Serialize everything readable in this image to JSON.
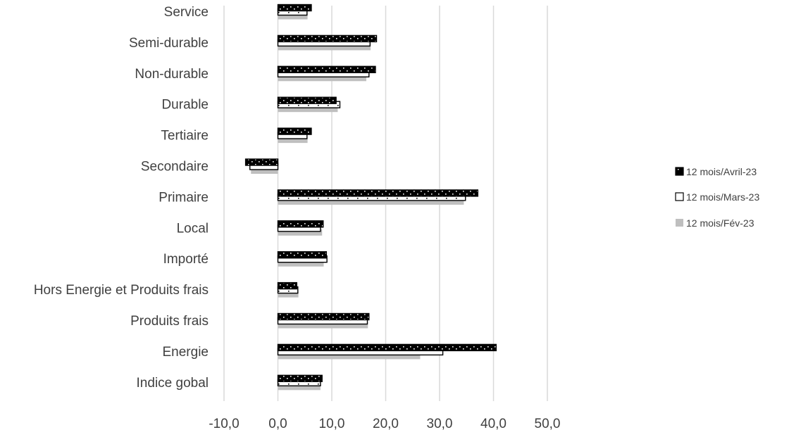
{
  "chart_data": {
    "type": "bar",
    "orientation": "horizontal",
    "categories": [
      "Service",
      "Semi-durable",
      "Non-durable",
      "Durable",
      "Tertiaire",
      "Secondaire",
      "Primaire",
      "Local",
      "Importé",
      "Hors Energie et Produits frais",
      "Produits frais",
      "Energie",
      "Indice gobal"
    ],
    "series": [
      {
        "name": "12 mois/Avril-23",
        "values": [
          6.2,
          18.3,
          18.1,
          10.8,
          6.2,
          -6.0,
          37.1,
          8.4,
          9.0,
          3.5,
          16.9,
          40.5,
          8.2
        ]
      },
      {
        "name": "12 mois/Mars-23",
        "values": [
          5.4,
          17.1,
          16.9,
          11.5,
          5.4,
          -5.2,
          34.8,
          7.9,
          9.1,
          3.7,
          16.6,
          30.6,
          7.9
        ]
      },
      {
        "name": "12 mois/Fév-23",
        "values": [
          5.5,
          17.2,
          16.4,
          11.1,
          5.5,
          -5.0,
          34.5,
          8.2,
          8.5,
          3.8,
          16.7,
          26.4,
          7.9
        ]
      }
    ],
    "xlim": [
      -10,
      50
    ],
    "xticks": [
      "-10,0",
      "0,0",
      "10,0",
      "20,0",
      "30,0",
      "40,0",
      "50,0"
    ],
    "xtick_values": [
      -10,
      0,
      10,
      20,
      30,
      40,
      50
    ],
    "grid": true,
    "legend_position": "right",
    "colors": {
      "avril": "#000000",
      "mars": "#ffffff",
      "fev": "#bfbfbf",
      "grid": "#d9d9d9",
      "text": "#404040"
    }
  }
}
